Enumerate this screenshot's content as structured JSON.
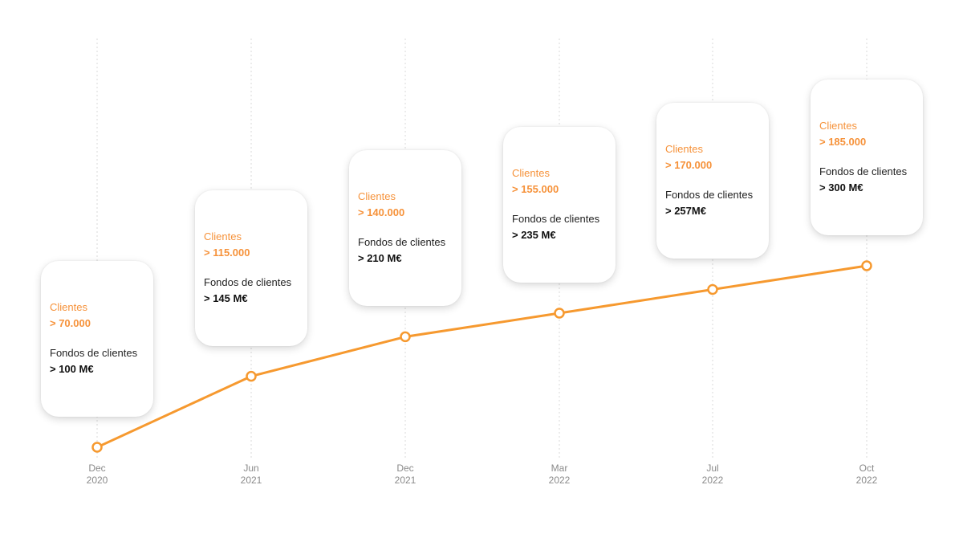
{
  "chart_data": {
    "type": "line",
    "categories": [
      {
        "month": "Dec",
        "year": "2020"
      },
      {
        "month": "Jun",
        "year": "2021"
      },
      {
        "month": "Dec",
        "year": "2021"
      },
      {
        "month": "Mar",
        "year": "2022"
      },
      {
        "month": "Jul",
        "year": "2022"
      },
      {
        "month": "Oct",
        "year": "2022"
      }
    ],
    "series": [
      {
        "values": [
          70000,
          115000,
          140000,
          155000,
          170000,
          185000
        ]
      }
    ],
    "annotations": [
      {
        "clients_label": "Clientes",
        "clients_value": "> 70.000",
        "funds_label": "Fondos de clientes",
        "funds_value": "> 100 M€"
      },
      {
        "clients_label": "Clientes",
        "clients_value": "> 115.000",
        "funds_label": "Fondos de clientes",
        "funds_value": "> 145 M€"
      },
      {
        "clients_label": "Clientes",
        "clients_value": "> 140.000",
        "funds_label": "Fondos de clientes",
        "funds_value": "> 210 M€"
      },
      {
        "clients_label": "Clientes",
        "clients_value": "> 155.000",
        "funds_label": "Fondos de clientes",
        "funds_value": "> 235 M€"
      },
      {
        "clients_label": "Clientes",
        "clients_value": "> 170.000",
        "funds_label": "Fondos de clientes",
        "funds_value": "> 257M€"
      },
      {
        "clients_label": "Clientes",
        "clients_value": "> 185.000",
        "funds_label": "Fondos de clientes",
        "funds_value": "> 300 M€"
      }
    ],
    "title": "",
    "xlabel": "",
    "ylabel": "",
    "grid": "vertical-dotted",
    "legend": "none",
    "colors": {
      "line": "#f6992f",
      "marker_fill": "#ffffff",
      "accent_text": "#f6923a",
      "grid": "#d9d9d9",
      "tick_text": "#8a8a8a"
    }
  }
}
